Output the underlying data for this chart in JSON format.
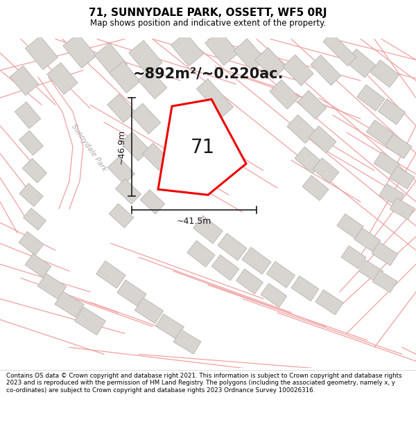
{
  "title": "71, SUNNYDALE PARK, OSSETT, WF5 0RJ",
  "subtitle": "Map shows position and indicative extent of the property.",
  "area_text": "~892m²/~0.220ac.",
  "plot_number": "71",
  "dim_width": "~41.5m",
  "dim_height": "~46.9m",
  "street_label": "Sunnydale Park",
  "footer_text": "Contains OS data © Crown copyright and database right 2021. This information is subject to Crown copyright and database rights 2023 and is reproduced with the permission of HM Land Registry. The polygons (including the associated geometry, namely x, y co-ordinates) are subject to Crown copyright and database rights 2023 Ordnance Survey 100026316.",
  "map_bg": "#ffffff",
  "road_line_color": "#f0a0a0",
  "building_color": "#d8d4d0",
  "building_edge": "#b8b4b0",
  "highlight_color": "#ee0000",
  "dim_line_color": "#1a1a1a",
  "title_color": "#000000",
  "footer_color": "#000000",
  "area_color": "#1a1a1a",
  "street_label_color": "#aaaaaa"
}
